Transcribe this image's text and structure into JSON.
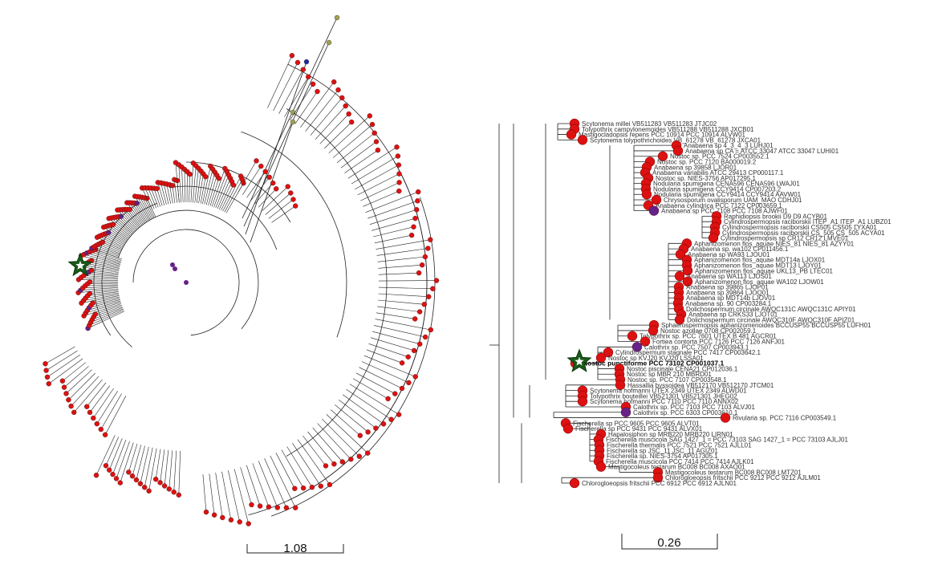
{
  "left_panel": {
    "scale_bar_label": "1.08"
  },
  "right_panel": {
    "scale_bar_label": "0.26",
    "highlighted_taxon": "Nostoc punctiforme PCC 73102 CP001037.1",
    "taxa": [
      {
        "label": "Scytonema millei VB511283 VB511283 JTJC02",
        "marker": "red"
      },
      {
        "label": "Tolypothrix campylonemoides VB511288 VB511288 JXCB01",
        "marker": "red"
      },
      {
        "label": "Mastigocladopsis repens PCC 10914 PCC 10914 ALVW01",
        "marker": "red"
      },
      {
        "label": "Scytonema tolypothrichoides VB_61278 VB_61278 JXCA01",
        "marker": "red"
      },
      {
        "label": "Anabaena sp 4_3_4_3 LUHJ01",
        "marker": "red"
      },
      {
        "label": "Anabaena sp CA = ATCC 33047 ATCC 33047 LUHI01",
        "marker": "red"
      },
      {
        "label": "Nostoc sp. PCC 7524 CP003552.1",
        "marker": "red"
      },
      {
        "label": "Nostoc sp. PCC 7120 BA000019.2",
        "marker": "red"
      },
      {
        "label": "Anabaena sp 39858 LJOR01",
        "marker": "red"
      },
      {
        "label": "Anabaena variabilis ATCC 29413 CP000117.1",
        "marker": "red"
      },
      {
        "label": "Nostoc sp. NIES-3756 AP017295.1",
        "marker": "red"
      },
      {
        "label": "Nodularia spumigena CENA596 CENA596 LWAJ01",
        "marker": "red"
      },
      {
        "label": "Nodularia spumigena CCY9414 CP007203.2",
        "marker": "red"
      },
      {
        "label": "Nodularia spumigena CCY9414 CCY9414 AAVW01",
        "marker": "red"
      },
      {
        "label": "Chrysosporum ovalisporum UAM_MAO CDHJ01",
        "marker": "red"
      },
      {
        "label": "Anabaena cylindrica PCC 7122 CP003659.1",
        "marker": "red"
      },
      {
        "label": "Anabaena sp PCC 7108 PCC 7108 AJWF01",
        "marker": "purple"
      },
      {
        "label": "Raphidiopsis brookii D9 D9 ACYB01",
        "marker": "red"
      },
      {
        "label": "Cylindrospermopsis raciborskii ITEP_A1 ITEP_A1 LUBZ01",
        "marker": "red"
      },
      {
        "label": "Cylindrospermopsis raciborskii CS505 CS505 LYXA01",
        "marker": "red"
      },
      {
        "label": "Cylindrospermopsis raciborskii CS_505 CS_505 ACYA01",
        "marker": "red"
      },
      {
        "label": "Cylindrospermopsis sp CR12 CR12 LMVE01",
        "marker": "red"
      },
      {
        "label": "Aphanizomenon flos_aquae NIES_81 NIES_81 AZYY01",
        "marker": "red"
      },
      {
        "label": "Anabaena sp. wa102 CP011456.1",
        "marker": "red"
      },
      {
        "label": "Anabaena sp WA93 LJOU01",
        "marker": "red"
      },
      {
        "label": "Aphanizomenon flos_aquae MDT14a LJOX01",
        "marker": "red"
      },
      {
        "label": "Aphanizomenon flos_aquae MDT13 LJOY01",
        "marker": "red"
      },
      {
        "label": "Aphanizomenon flos_aquae UKL13_PB LTEC01",
        "marker": "red"
      },
      {
        "label": "Anabaena sp WA113 LJOS01",
        "marker": "red"
      },
      {
        "label": "Aphanizomenon flos_aquae WA102 LJOW01",
        "marker": "red"
      },
      {
        "label": "Anabaena sp 39865 LJOP01",
        "marker": "red"
      },
      {
        "label": "Anabaena sp 39864 LJOQ01",
        "marker": "red"
      },
      {
        "label": "Anabaena sp MDT14b LJOV01",
        "marker": "red"
      },
      {
        "label": "Anabaena sp. 90 CP003284.1",
        "marker": "red"
      },
      {
        "label": "Dolichospermum circinale AWQC131C AWQC131C APIY01",
        "marker": "red"
      },
      {
        "label": "Anabaena sp CRKS33 LJOT01",
        "marker": "red"
      },
      {
        "label": "Dolichospermum circinale AWQC310F AWQC310F APIZ01",
        "marker": "red"
      },
      {
        "label": "Sphaerospermopsis aphanizomenoides BCCUSP55 BCCUSP55 LUFH01",
        "marker": "red"
      },
      {
        "label": "Nostoc azollae 0708 CP002059.1",
        "marker": "red"
      },
      {
        "label": "Tolypothrix sp. PCC 7601 UTEX B 481 AGCR01",
        "marker": "red"
      },
      {
        "label": "Fortiea contorta PCC 7126 PCC 7126 ANFJ01",
        "marker": "red"
      },
      {
        "label": "Calothrix sp. PCC 7507 CP003943.1",
        "marker": "purple"
      },
      {
        "label": "Cylindrospermum stagnale PCC 7417 CP003642.1",
        "marker": "red"
      },
      {
        "label": "Nostoc sp KVJ20 KVJ20 LSSA01",
        "marker": "red"
      },
      {
        "label": "Nostoc punctiforme PCC 73102 CP001037.1",
        "marker": "red"
      },
      {
        "label": "Nostoc piscinale CENA21 CP012036.1",
        "marker": "red"
      },
      {
        "label": "Nostoc sp MBR 210 MBRD01",
        "marker": "red"
      },
      {
        "label": "Nostoc sp. PCC 7107 CP003548.1",
        "marker": "red"
      },
      {
        "label": "Hassallia byssoidea VB512170 VB512170 JTCM01",
        "marker": "red"
      },
      {
        "label": "Scytonema hofmanni UTEX 2349 UTEX 2349 ALWD01",
        "marker": "red"
      },
      {
        "label": "Tolypothrix bouteillei VB521301 VB521301 JHEG02",
        "marker": "red"
      },
      {
        "label": "Scytonema hofmanni PCC 7110 PCC 7110 ANNX02",
        "marker": "red"
      },
      {
        "label": "Calothrix sp. PCC 7103 PCC 7103 ALVJ01",
        "marker": "red"
      },
      {
        "label": "Calothrix sp. PCC 6303 CP003610.1",
        "marker": "purple"
      },
      {
        "label": "Rivularia sp. PCC 7116 CP003549.1",
        "marker": "red"
      },
      {
        "label": "Fischerella sp PCC 9605 PCC 9605 ALVT01",
        "marker": "red"
      },
      {
        "label": "Fischerella sp PCC 9431 PCC 9431 ALVX01",
        "marker": "red"
      },
      {
        "label": "Hapalosiphon sp MRB220 MRB220 LIRN01",
        "marker": "red"
      },
      {
        "label": "Fischerella muscicola SAG 1427_1 = PCC 73103 SAG 1427_1 = PCC 73103 AJLJ01",
        "marker": "red"
      },
      {
        "label": "Fischerella thermalis PCC 7521 PCC 7521 AJLL01",
        "marker": "red"
      },
      {
        "label": "Fischerella sp JSC_11 JSC_11 AGIZ01",
        "marker": "red"
      },
      {
        "label": "Fischerella sp. NIES-3754 AP017305.1",
        "marker": "red"
      },
      {
        "label": "Fischerella muscicola PCC 7414 PCC 7414 AJLK01",
        "marker": "red"
      },
      {
        "label": "Mastigocoleus testarum BC008 BC008 AXAO01",
        "marker": "red"
      },
      {
        "label": "Mastigocoleus testarum BC008 BC008 LMTZ01",
        "marker": "red"
      },
      {
        "label": "Chlorogloeopsis fritschii PCC 9212 PCC 9212 AJLM01",
        "marker": "red"
      },
      {
        "label": "Chlorogloeopsis fritschii PCC 6912 PCC 6912 AJLN01",
        "marker": "red"
      }
    ]
  },
  "colors": {
    "tip_red": "#dd1111",
    "tip_purple": "#662288",
    "tip_olive": "#a0a050",
    "tip_blue": "#1a2aa0",
    "star_green": "#1a5a1a",
    "branch": "#222222"
  }
}
